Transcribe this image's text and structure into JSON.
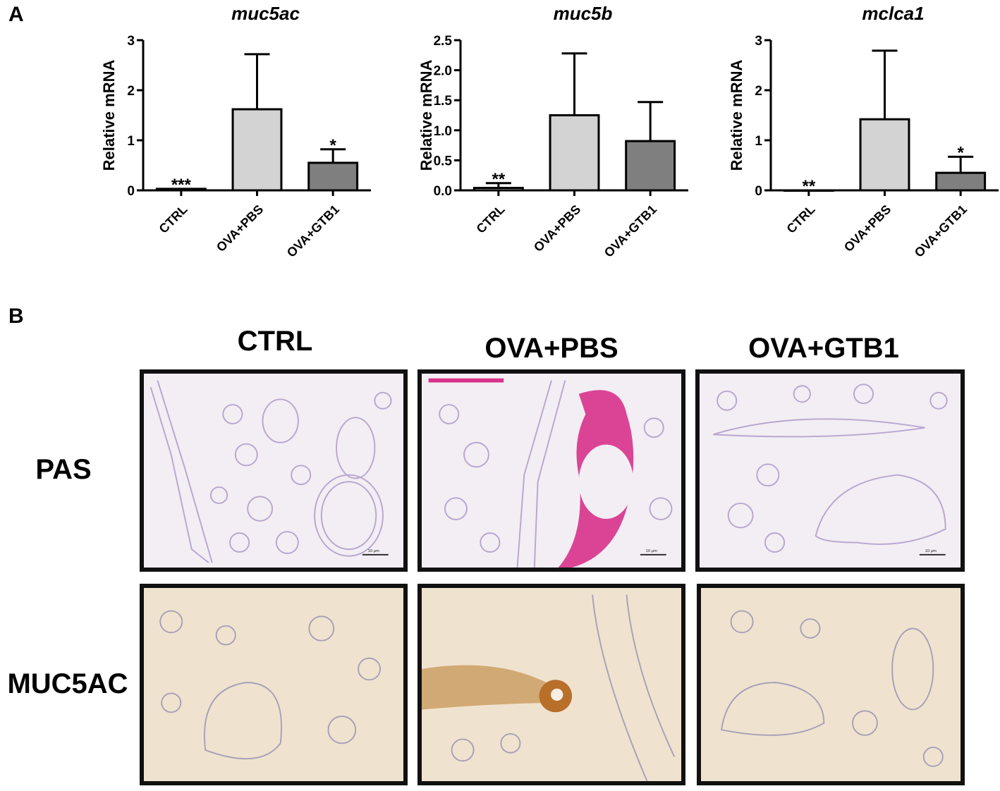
{
  "panels": {
    "a_label": "A",
    "b_label": "B"
  },
  "chart_data": [
    {
      "type": "bar",
      "title": "muc5ac",
      "ylabel": "Relative mRNA",
      "categories": [
        "CTRL",
        "OVA+PBS",
        "OVA+GTB1"
      ],
      "values": [
        0.03,
        1.62,
        0.55
      ],
      "error": [
        0,
        1.1,
        0.27
      ],
      "significance": [
        "***",
        "",
        "*"
      ],
      "ylim": [
        0,
        3
      ],
      "yticks": [
        "0",
        "1",
        "2",
        "3"
      ],
      "yticks_values": [
        0,
        1,
        2,
        3
      ],
      "bar_colors": [
        "#ffffff",
        "#d3d3d3",
        "#7f7f7f"
      ]
    },
    {
      "type": "bar",
      "title": "muc5b",
      "ylabel": "Relative mRNA",
      "categories": [
        "CTRL",
        "OVA+PBS",
        "OVA+GTB1"
      ],
      "values": [
        0.04,
        1.25,
        0.82
      ],
      "error": [
        0.08,
        1.03,
        0.65
      ],
      "significance": [
        "**",
        "",
        ""
      ],
      "ylim": [
        0,
        2.5
      ],
      "yticks": [
        "0.0",
        "0.5",
        "1.0",
        "1.5",
        "2.0",
        "2.5"
      ],
      "yticks_values": [
        0,
        0.5,
        1.0,
        1.5,
        2.0,
        2.5
      ],
      "bar_colors": [
        "#ffffff",
        "#d3d3d3",
        "#7f7f7f"
      ]
    },
    {
      "type": "bar",
      "title": "mclca1",
      "ylabel": "Relative mRNA",
      "categories": [
        "CTRL",
        "OVA+PBS",
        "OVA+GTB1"
      ],
      "values": [
        0.0,
        1.42,
        0.35
      ],
      "error": [
        0,
        1.37,
        0.32
      ],
      "significance": [
        "**",
        "",
        "*"
      ],
      "ylim": [
        0,
        3
      ],
      "yticks": [
        "0",
        "1",
        "2",
        "3"
      ],
      "yticks_values": [
        0,
        1,
        2,
        3
      ],
      "bar_colors": [
        "#ffffff",
        "#d3d3d3",
        "#7f7f7f"
      ]
    }
  ],
  "histology": {
    "columns": [
      "CTRL",
      "OVA+PBS",
      "OVA+GTB1"
    ],
    "rows": [
      "PAS",
      "MUC5AC"
    ],
    "scale_bar_label": "10 μm",
    "colors": {
      "pas_background": "#f2eef4",
      "pas_tissue": "#b9a6cf",
      "pas_mucus": "#d8318b",
      "muc_background": "#efe3cf",
      "muc_tissue": "#a9a0b8",
      "muc_stain": "#b86f2a"
    }
  }
}
